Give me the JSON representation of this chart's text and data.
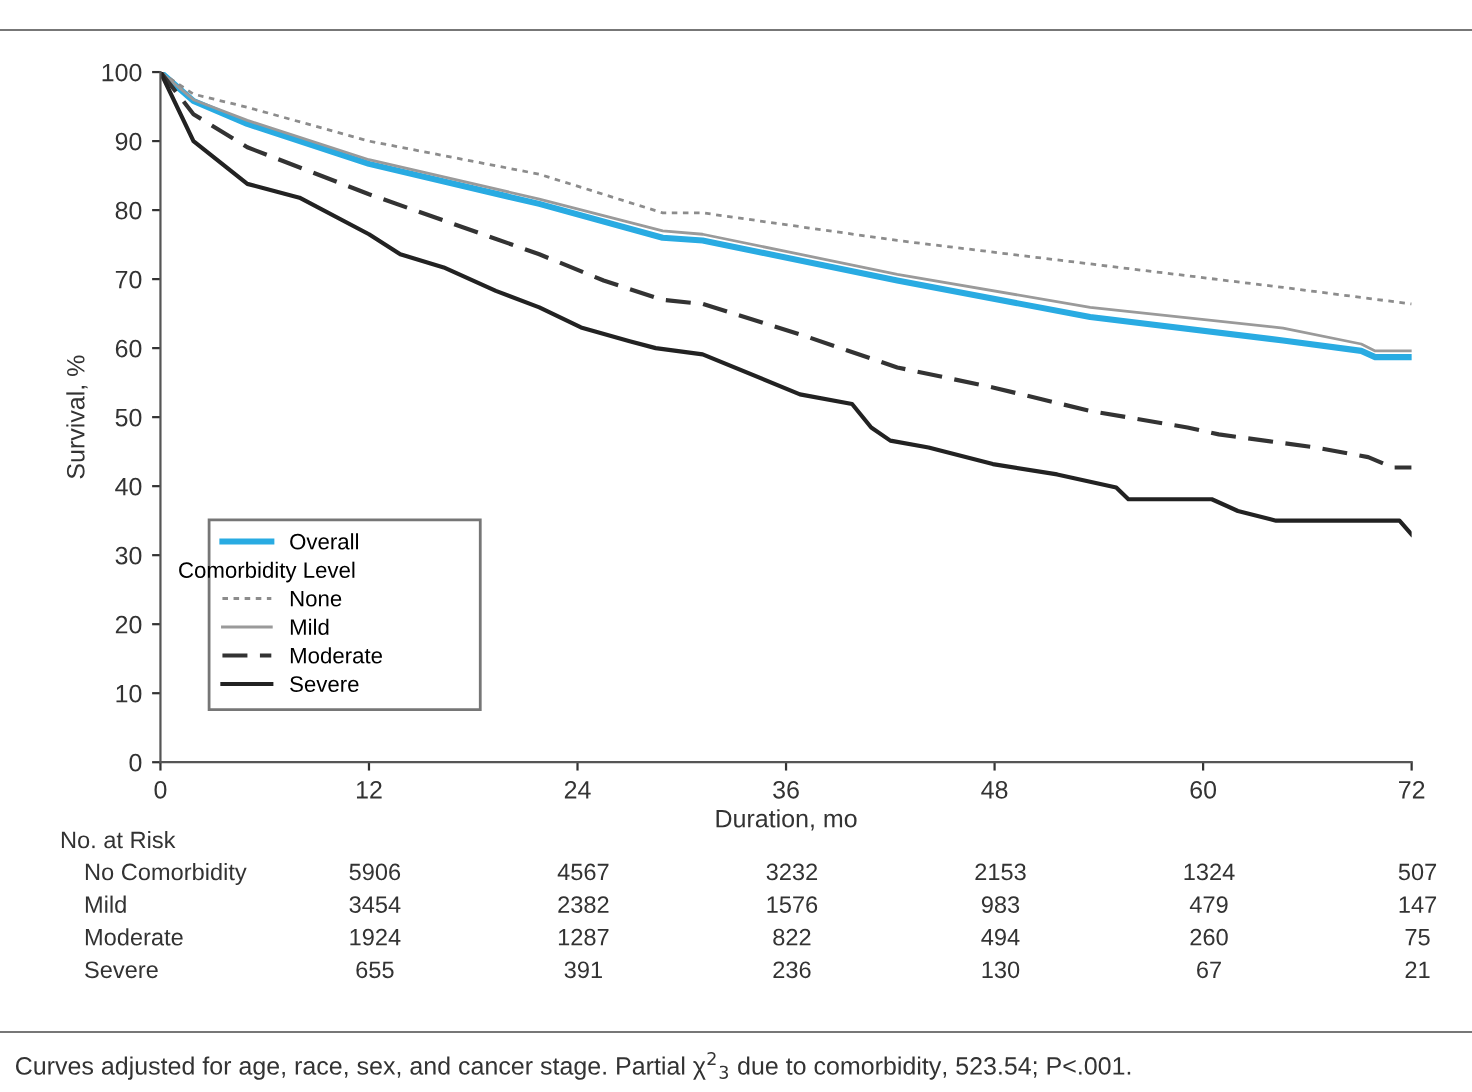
{
  "chart_data": {
    "type": "line",
    "xlabel": "Duration, mo",
    "ylabel": "Survival, %",
    "legend_title": "Comorbidity Level",
    "xlim": [
      0,
      72
    ],
    "xticks": [
      0,
      12,
      24,
      36,
      48,
      60,
      72
    ],
    "ylim": [
      0,
      100
    ],
    "yticks": [
      0,
      10,
      20,
      30,
      40,
      50,
      60,
      70,
      80,
      90,
      100
    ],
    "grid": false,
    "legend": "bottom left",
    "series": [
      {
        "name": "Overall",
        "color": "#29abe2",
        "line_style": "solid",
        "x": [
          0,
          1.9,
          5,
          12,
          21.8,
          28.9,
          31.2,
          42.4,
          53.5,
          64.6,
          69.1,
          69.9,
          72
        ],
        "values": [
          100,
          95.8,
          92.5,
          86.7,
          80.9,
          76,
          75.6,
          69.8,
          64.5,
          61.1,
          59.6,
          58.7,
          58.7
        ]
      },
      {
        "name": "None",
        "color": "#8c8c8c",
        "line_style": "dotted",
        "x": [
          0,
          1.9,
          5,
          12,
          21.8,
          28.9,
          31.2,
          42.4,
          53.5,
          64.6,
          72
        ],
        "values": [
          100,
          96.8,
          94.9,
          90,
          85.2,
          79.6,
          79.6,
          75.6,
          72.2,
          68.8,
          66.4
        ]
      },
      {
        "name": "Mild",
        "color": "#9a9a9a",
        "line_style": "solid",
        "x": [
          0,
          1.9,
          5,
          12,
          21.8,
          28.9,
          31.2,
          42.4,
          53.5,
          64.6,
          69.1,
          69.9,
          72
        ],
        "values": [
          100,
          96,
          93,
          87.3,
          81.6,
          77,
          76.5,
          70.7,
          65.9,
          62.9,
          60.6,
          59.6,
          59.6
        ]
      },
      {
        "name": "Moderate",
        "color": "#333333",
        "line_style": "dashed",
        "x": [
          0,
          1.9,
          5,
          12,
          16.3,
          21.8,
          25.5,
          28.9,
          31.2,
          36.8,
          42.4,
          47.9,
          53.5,
          59.1,
          60.9,
          66.5,
          69.5,
          70.9,
          72
        ],
        "values": [
          100,
          93.9,
          89.1,
          82.3,
          78.5,
          73.6,
          69.8,
          67,
          66.4,
          62,
          57.2,
          54.3,
          50.9,
          48.5,
          47.5,
          45.6,
          44.2,
          42.7,
          42.7
        ]
      },
      {
        "name": "Severe",
        "color": "#222222",
        "line_style": "solid",
        "x": [
          0,
          1.9,
          5,
          8,
          12,
          13.8,
          16.3,
          19.3,
          21.8,
          24.2,
          27,
          28.5,
          31.2,
          36.8,
          39.8,
          40.9,
          42,
          44.2,
          47.9,
          51.6,
          55,
          55.7,
          60.5,
          62,
          64.2,
          71.3,
          72
        ],
        "values": [
          100,
          90,
          83.8,
          81.8,
          76.5,
          73.6,
          71.7,
          68.3,
          65.9,
          63,
          61,
          60,
          59.1,
          53.3,
          51.9,
          48.5,
          46.6,
          45.6,
          43.2,
          41.7,
          39.8,
          38.1,
          38.1,
          36.4,
          35,
          35,
          33
        ]
      }
    ],
    "annotations": [
      "No. at Risk",
      "No Comorbidity",
      "5906",
      "4567",
      "3232",
      "2153",
      "1324",
      "507",
      "Mild",
      "3454",
      "2382",
      "1576",
      "983",
      "479",
      "147",
      "Moderate",
      "1924",
      "1287",
      "822",
      "494",
      "260",
      "75",
      "Severe",
      "655",
      "391",
      "236",
      "130",
      "67",
      "21",
      "Curves adjusted for age, race, sex, and cancer stage. Partial χ$^{2}$$_{3}$ due to comorbidity, 523.54; P<.001."
    ]
  }
}
